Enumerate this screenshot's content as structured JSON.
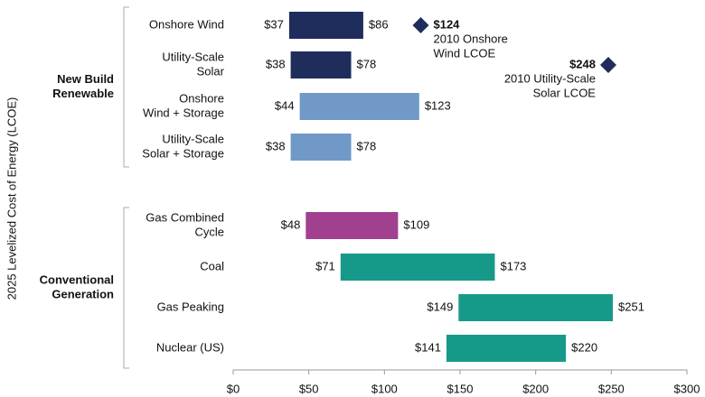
{
  "chart_data": {
    "type": "range-bar",
    "y_label": "2025 Levelized Cost of Energy (LCOE)",
    "groups": [
      {
        "label": [
          "New Build",
          "Renewable"
        ],
        "count": 4
      },
      {
        "label": [
          "Conventional",
          "Generation"
        ],
        "count": 4
      }
    ],
    "categories": [
      [
        "Onshore Wind"
      ],
      [
        "Utility-Scale",
        "Solar"
      ],
      [
        "Onshore",
        "Wind + Storage"
      ],
      [
        "Utility-Scale",
        "Solar + Storage"
      ],
      [
        "Gas Combined",
        "Cycle"
      ],
      [
        "Coal"
      ],
      [
        "Gas Peaking"
      ],
      [
        "Nuclear (US)"
      ]
    ],
    "low": [
      37,
      38,
      44,
      38,
      48,
      71,
      149,
      141
    ],
    "low_labels": [
      "$37",
      "$38",
      "$44",
      "$38",
      "$48",
      "$71",
      "$149",
      "$141"
    ],
    "high": [
      86,
      78,
      123,
      78,
      109,
      173,
      251,
      220
    ],
    "high_labels": [
      "$86",
      "$78",
      "$123",
      "$78",
      "$109",
      "$173",
      "$251",
      "$220"
    ],
    "colors": [
      "#1f2d5c",
      "#1f2d5c",
      "#7199c8",
      "#7199c8",
      "#a0408f",
      "#17998a",
      "#17998a",
      "#17998a"
    ],
    "annotations": [
      {
        "value": 124,
        "label": "$124",
        "text": [
          "2010 Onshore",
          "Wind LCOE"
        ],
        "color": "#1f2d5c"
      },
      {
        "value": 248,
        "label": "$248",
        "text": [
          "2010 Utility-Scale",
          "Solar LCOE"
        ],
        "color": "#1f2d5c"
      }
    ],
    "xlim": [
      0,
      300
    ],
    "xticks": [
      {
        "value": 0,
        "label": "$0"
      },
      {
        "value": 50,
        "label": "$50"
      },
      {
        "value": 100,
        "label": "$100"
      },
      {
        "value": 150,
        "label": "$150"
      },
      {
        "value": 200,
        "label": "$200"
      },
      {
        "value": 250,
        "label": "$250"
      },
      {
        "value": 300,
        "label": "$300"
      }
    ],
    "grid": false
  }
}
